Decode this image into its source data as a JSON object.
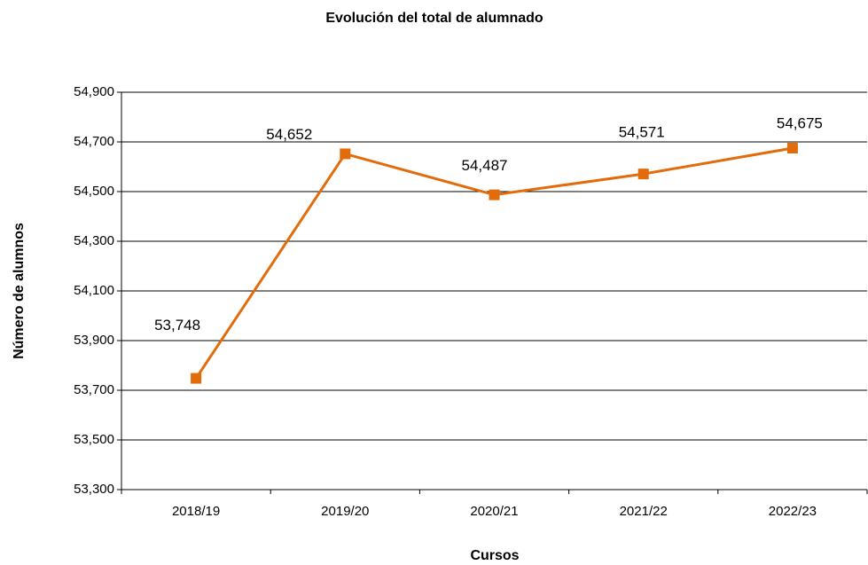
{
  "chart_data": {
    "type": "line",
    "title": "Evolución del total de alumnado",
    "x_label": "Cursos",
    "y_label": "Número de alumnos",
    "categories": [
      "2018/19",
      "2019/20",
      "2020/21",
      "2021/22",
      "2022/23"
    ],
    "values": [
      53748,
      54652,
      54487,
      54571,
      54675
    ],
    "value_labels": [
      "53,748",
      "54,652",
      "54,487",
      "54,571",
      "54,675"
    ],
    "color": "#e36c0a",
    "ylim": [
      53300,
      54900
    ],
    "yticks": [
      {
        "value": 53300,
        "label": "53,300"
      },
      {
        "value": 53500,
        "label": "53,500"
      },
      {
        "value": 53700,
        "label": "53,700"
      },
      {
        "value": 53900,
        "label": "53,900"
      },
      {
        "value": 54100,
        "label": "54,100"
      },
      {
        "value": 54300,
        "label": "54,300"
      },
      {
        "value": 54500,
        "label": "54,500"
      },
      {
        "value": 54700,
        "label": "54,700"
      },
      {
        "value": 54900,
        "label": "54,900"
      }
    ],
    "grid": true
  }
}
